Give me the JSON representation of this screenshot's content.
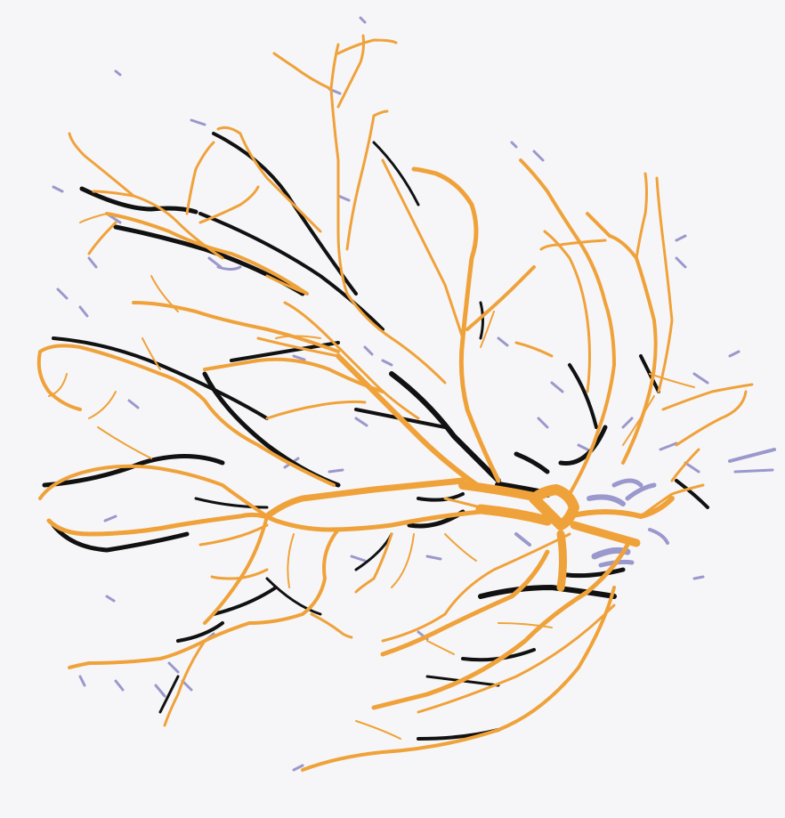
{
  "image": {
    "kind": "retinal vessel segmentation overlay",
    "background": "#f6f6f8",
    "colors": {
      "true_positive": "#f0a23a",
      "false_negative": "#111111",
      "false_positive": "#9a98cc"
    },
    "legend": [],
    "text_labels": []
  }
}
